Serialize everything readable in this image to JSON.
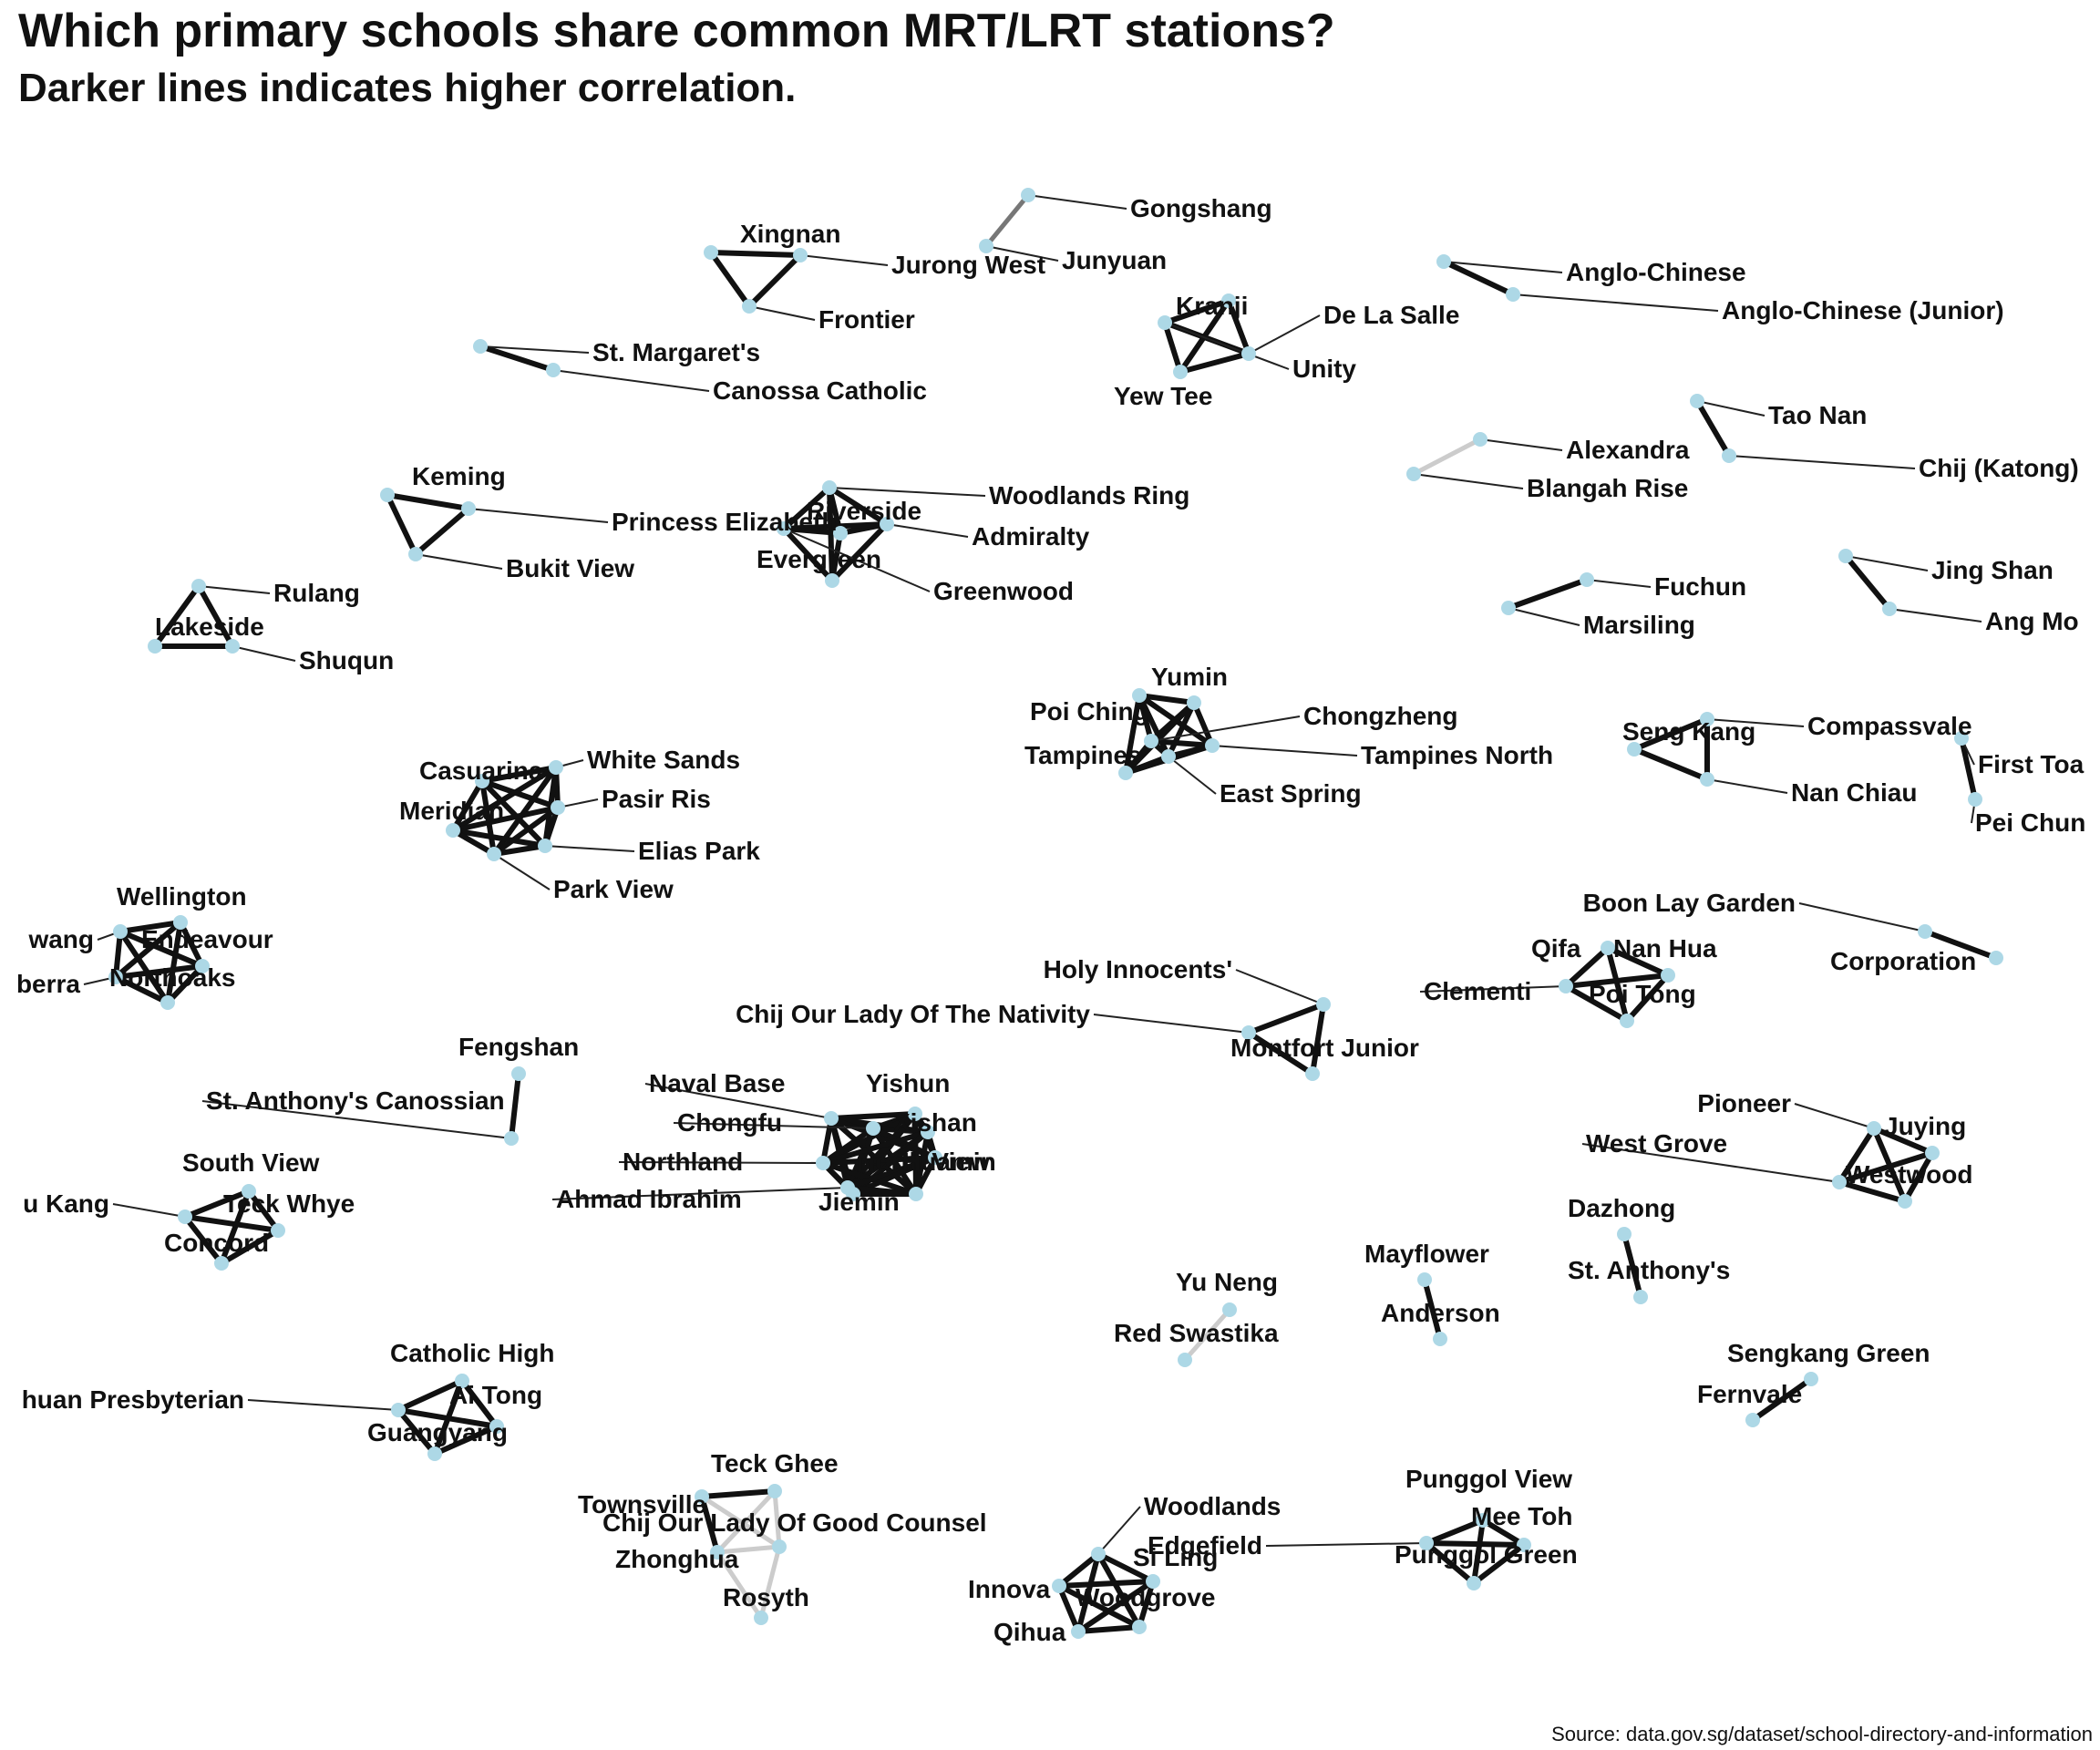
{
  "title": "Which primary schools share common MRT/LRT stations?",
  "subtitle": "Darker lines indicates higher correlation.",
  "source": "Source: data.gov.sg/dataset/school-directory-and-information",
  "colors": {
    "node": "#add8e6",
    "strong_edge": "#111111",
    "medium_edge": "#777777",
    "weak_edge": "#cccccc"
  },
  "clusters": [
    {
      "name": "gongshang",
      "schools": [
        "Gongshang",
        "Junyuan"
      ],
      "edges": [
        [
          0,
          1,
          0.6
        ]
      ]
    },
    {
      "name": "jurong-west",
      "schools": [
        "Xingnan",
        "Jurong West",
        "Frontier"
      ],
      "edges": [
        [
          0,
          1,
          1
        ],
        [
          0,
          2,
          1
        ],
        [
          1,
          2,
          1
        ]
      ]
    },
    {
      "name": "anglo-chinese",
      "schools": [
        "Anglo-Chinese",
        "Anglo-Chinese  (Junior)"
      ],
      "edges": [
        [
          0,
          1,
          1
        ]
      ]
    },
    {
      "name": "kranji",
      "schools": [
        "Kranji",
        "De La Salle",
        "Unity",
        "Yew Tee"
      ],
      "edges": [
        [
          0,
          1,
          1
        ],
        [
          0,
          2,
          1
        ],
        [
          0,
          3,
          1
        ],
        [
          1,
          2,
          1
        ],
        [
          1,
          3,
          1
        ],
        [
          2,
          3,
          1
        ]
      ]
    },
    {
      "name": "st-margarets",
      "schools": [
        "St. Margaret's",
        "Canossa Catholic"
      ],
      "edges": [
        [
          0,
          1,
          1
        ]
      ]
    },
    {
      "name": "tao-nan",
      "schools": [
        "Tao Nan",
        "Chij (Katong)"
      ],
      "edges": [
        [
          0,
          1,
          1
        ]
      ]
    },
    {
      "name": "alexandra",
      "schools": [
        "Alexandra",
        "Blangah Rise"
      ],
      "edges": [
        [
          0,
          1,
          0.2
        ]
      ]
    },
    {
      "name": "keming",
      "schools": [
        "Keming",
        "Princess Elizabeth",
        "Bukit View"
      ],
      "edges": [
        [
          0,
          1,
          1
        ],
        [
          0,
          2,
          1
        ],
        [
          1,
          2,
          1
        ]
      ]
    },
    {
      "name": "woodlands-ring",
      "schools": [
        "Woodlands Ring",
        "Riverside",
        "Admiralty",
        "Evergreen",
        "Greenwood"
      ],
      "edges": [
        [
          0,
          1,
          1
        ],
        [
          0,
          2,
          1
        ],
        [
          0,
          3,
          1
        ],
        [
          0,
          4,
          1
        ],
        [
          1,
          2,
          1
        ],
        [
          1,
          3,
          1
        ],
        [
          1,
          4,
          1
        ],
        [
          2,
          3,
          1
        ],
        [
          2,
          4,
          1
        ],
        [
          3,
          4,
          1
        ]
      ]
    },
    {
      "name": "fuchun",
      "schools": [
        "Fuchun",
        "Marsiling"
      ],
      "edges": [
        [
          0,
          1,
          1
        ]
      ]
    },
    {
      "name": "jing-shan",
      "schools": [
        "Jing Shan",
        "Ang Mo"
      ],
      "edges": [
        [
          0,
          1,
          1
        ]
      ]
    },
    {
      "name": "rulang",
      "schools": [
        "Rulang",
        "Lakeside",
        "Shuqun"
      ],
      "edges": [
        [
          0,
          1,
          1
        ],
        [
          0,
          2,
          1
        ],
        [
          1,
          2,
          1
        ]
      ]
    },
    {
      "name": "yumin",
      "schools": [
        "Yumin",
        "Poi Ching",
        "Chongzheng",
        "Tampines",
        "Tampines North",
        "East Spring"
      ],
      "edges": [
        [
          0,
          1,
          1
        ],
        [
          0,
          2,
          1
        ],
        [
          0,
          3,
          1
        ],
        [
          0,
          4,
          1
        ],
        [
          0,
          5,
          1
        ],
        [
          1,
          2,
          1
        ],
        [
          1,
          3,
          1
        ],
        [
          1,
          4,
          1
        ],
        [
          1,
          5,
          1
        ],
        [
          2,
          3,
          1
        ],
        [
          2,
          4,
          1
        ],
        [
          2,
          5,
          1
        ],
        [
          3,
          4,
          1
        ],
        [
          3,
          5,
          1
        ],
        [
          4,
          5,
          1
        ]
      ]
    },
    {
      "name": "seng-kang",
      "schools": [
        "Seng Kang",
        "Compassvale",
        "Nan Chiau"
      ],
      "edges": [
        [
          0,
          1,
          1
        ],
        [
          0,
          2,
          1
        ],
        [
          1,
          2,
          1
        ]
      ]
    },
    {
      "name": "first-toa",
      "schools": [
        "First Toa",
        "Pei Chun"
      ],
      "edges": [
        [
          0,
          1,
          1
        ]
      ]
    },
    {
      "name": "casuarina",
      "schools": [
        "Casuarina",
        "White Sands",
        "Pasir Ris",
        "Meridian",
        "Elias Park",
        "Park View"
      ],
      "edges": [
        [
          0,
          1,
          1
        ],
        [
          0,
          2,
          1
        ],
        [
          0,
          3,
          1
        ],
        [
          0,
          4,
          1
        ],
        [
          0,
          5,
          1
        ],
        [
          1,
          2,
          1
        ],
        [
          1,
          3,
          1
        ],
        [
          1,
          4,
          1
        ],
        [
          1,
          5,
          1
        ],
        [
          2,
          3,
          1
        ],
        [
          2,
          4,
          1
        ],
        [
          2,
          5,
          1
        ],
        [
          3,
          4,
          1
        ],
        [
          3,
          5,
          1
        ],
        [
          4,
          5,
          1
        ]
      ]
    },
    {
      "name": "wellington",
      "schools": [
        "Wellington",
        "Endeavour",
        "Northoaks",
        "Canberra",
        "Sembawang"
      ],
      "display_labels": [
        "Wellington",
        "Endeavour",
        "Northoaks",
        "berra",
        "wang"
      ],
      "edges": [
        [
          0,
          1,
          1
        ],
        [
          0,
          2,
          1
        ],
        [
          0,
          3,
          1
        ],
        [
          0,
          4,
          1
        ],
        [
          1,
          2,
          1
        ],
        [
          1,
          3,
          1
        ],
        [
          1,
          4,
          1
        ],
        [
          2,
          3,
          1
        ],
        [
          2,
          4,
          1
        ],
        [
          3,
          4,
          1
        ]
      ]
    },
    {
      "name": "boon-lay",
      "schools": [
        "Boon Lay Garden",
        "Corporation"
      ],
      "edges": [
        [
          0,
          1,
          1
        ]
      ]
    },
    {
      "name": "qifa",
      "schools": [
        "Qifa",
        "Nan Hua",
        "Clementi",
        "Poi Tong"
      ],
      "edges": [
        [
          0,
          1,
          1
        ],
        [
          0,
          2,
          1
        ],
        [
          0,
          3,
          1
        ],
        [
          1,
          2,
          1
        ],
        [
          1,
          3,
          1
        ],
        [
          2,
          3,
          1
        ]
      ]
    },
    {
      "name": "montfort",
      "schools": [
        "Holy Innocents'",
        "Chij Our Lady Of The Nativity",
        "Montfort Junior"
      ],
      "edges": [
        [
          0,
          1,
          1
        ],
        [
          0,
          2,
          1
        ],
        [
          1,
          2,
          1
        ]
      ]
    },
    {
      "name": "fengshan",
      "schools": [
        "Fengshan",
        "St. Anthony's Canossian"
      ],
      "edges": [
        [
          0,
          1,
          1
        ]
      ]
    },
    {
      "name": "yishun",
      "schools": [
        "Naval Base",
        "Yishun",
        "Chongfu",
        "Xishan",
        "Northland",
        "North View",
        "Ahmad Ibrahim",
        "Jiemin",
        "Huamin"
      ],
      "display_labels": [
        "Naval Base",
        "Yishun",
        "Chongfu",
        "Xishan",
        "Northland",
        "North View",
        "Ahmad Ibrahim",
        "Jiemin",
        "Huamin"
      ],
      "edges": [
        [
          0,
          1,
          1
        ],
        [
          0,
          2,
          1
        ],
        [
          0,
          3,
          1
        ],
        [
          0,
          4,
          1
        ],
        [
          0,
          5,
          1
        ],
        [
          0,
          6,
          1
        ],
        [
          0,
          7,
          1
        ],
        [
          0,
          8,
          1
        ],
        [
          1,
          2,
          1
        ],
        [
          1,
          3,
          1
        ],
        [
          1,
          4,
          1
        ],
        [
          1,
          5,
          1
        ],
        [
          1,
          6,
          1
        ],
        [
          1,
          7,
          1
        ],
        [
          1,
          8,
          1
        ],
        [
          2,
          3,
          1
        ],
        [
          2,
          4,
          1
        ],
        [
          2,
          5,
          1
        ],
        [
          2,
          6,
          1
        ],
        [
          2,
          7,
          1
        ],
        [
          2,
          8,
          1
        ],
        [
          3,
          4,
          1
        ],
        [
          3,
          5,
          1
        ],
        [
          3,
          6,
          1
        ],
        [
          3,
          7,
          1
        ],
        [
          3,
          8,
          1
        ],
        [
          4,
          5,
          1
        ],
        [
          4,
          6,
          1
        ],
        [
          4,
          7,
          1
        ],
        [
          4,
          8,
          1
        ],
        [
          5,
          6,
          1
        ],
        [
          5,
          7,
          1
        ],
        [
          5,
          8,
          1
        ],
        [
          6,
          7,
          1
        ],
        [
          6,
          8,
          1
        ],
        [
          7,
          8,
          1
        ]
      ]
    },
    {
      "name": "pioneer",
      "schools": [
        "Pioneer",
        "Juying",
        "West Grove",
        "Westwood"
      ],
      "edges": [
        [
          0,
          1,
          1
        ],
        [
          0,
          2,
          1
        ],
        [
          0,
          3,
          1
        ],
        [
          1,
          2,
          1
        ],
        [
          1,
          3,
          1
        ],
        [
          2,
          3,
          1
        ]
      ]
    },
    {
      "name": "south-view",
      "schools": [
        "South View",
        "Teck Whye",
        "Concord",
        "Bukit Kang"
      ],
      "display_labels": [
        "South View",
        "Teck Whye",
        "Concord",
        "u Kang"
      ],
      "edges": [
        [
          0,
          1,
          1
        ],
        [
          0,
          2,
          1
        ],
        [
          0,
          3,
          1
        ],
        [
          1,
          2,
          1
        ],
        [
          1,
          3,
          1
        ],
        [
          2,
          3,
          1
        ]
      ]
    },
    {
      "name": "dazhong",
      "schools": [
        "Dazhong",
        "St. Anthony's"
      ],
      "edges": [
        [
          0,
          1,
          1
        ]
      ]
    },
    {
      "name": "mayflower",
      "schools": [
        "Mayflower",
        "Anderson"
      ],
      "edges": [
        [
          0,
          1,
          1
        ]
      ]
    },
    {
      "name": "yu-neng",
      "schools": [
        "Yu Neng",
        "Red Swastika"
      ],
      "edges": [
        [
          0,
          1,
          0.2
        ]
      ]
    },
    {
      "name": "sengkang-green",
      "schools": [
        "Sengkang Green",
        "Fernvale"
      ],
      "edges": [
        [
          0,
          1,
          1
        ]
      ]
    },
    {
      "name": "catholic-high",
      "schools": [
        "Catholic High",
        "Ai Tong",
        "Kuo Chuan Presbyterian",
        "Guangyang"
      ],
      "display_labels": [
        "Catholic High",
        "Ai Tong",
        "huan Presbyterian",
        "Guangyang"
      ],
      "edges": [
        [
          0,
          1,
          1
        ],
        [
          0,
          2,
          1
        ],
        [
          0,
          3,
          1
        ],
        [
          1,
          2,
          1
        ],
        [
          1,
          3,
          1
        ],
        [
          2,
          3,
          1
        ]
      ]
    },
    {
      "name": "teck-ghee",
      "schools": [
        "Teck Ghee",
        "Townsville",
        "Chij Our Lady Of Good Counsel",
        "Zhonghua",
        "Rosyth"
      ],
      "edges": [
        [
          0,
          1,
          1
        ],
        [
          0,
          2,
          0.2
        ],
        [
          0,
          3,
          0.2
        ],
        [
          1,
          2,
          0.2
        ],
        [
          1,
          3,
          1
        ],
        [
          2,
          3,
          0.2
        ],
        [
          2,
          4,
          0.2
        ],
        [
          3,
          4,
          0.2
        ]
      ]
    },
    {
      "name": "woodlands",
      "schools": [
        "Woodlands",
        "Si Ling",
        "Innova",
        "Woodgrove",
        "Qihua"
      ],
      "edges": [
        [
          0,
          1,
          1
        ],
        [
          0,
          2,
          1
        ],
        [
          0,
          3,
          1
        ],
        [
          0,
          4,
          1
        ],
        [
          1,
          2,
          1
        ],
        [
          1,
          3,
          1
        ],
        [
          1,
          4,
          1
        ],
        [
          2,
          3,
          1
        ],
        [
          2,
          4,
          1
        ],
        [
          3,
          4,
          1
        ]
      ]
    },
    {
      "name": "punggol",
      "schools": [
        "Punggol View",
        "Mee Toh",
        "Edgefield",
        "Punggol Green"
      ],
      "edges": [
        [
          0,
          1,
          1
        ],
        [
          0,
          2,
          1
        ],
        [
          0,
          3,
          1
        ],
        [
          1,
          2,
          1
        ],
        [
          1,
          3,
          1
        ],
        [
          2,
          3,
          1
        ]
      ]
    }
  ]
}
